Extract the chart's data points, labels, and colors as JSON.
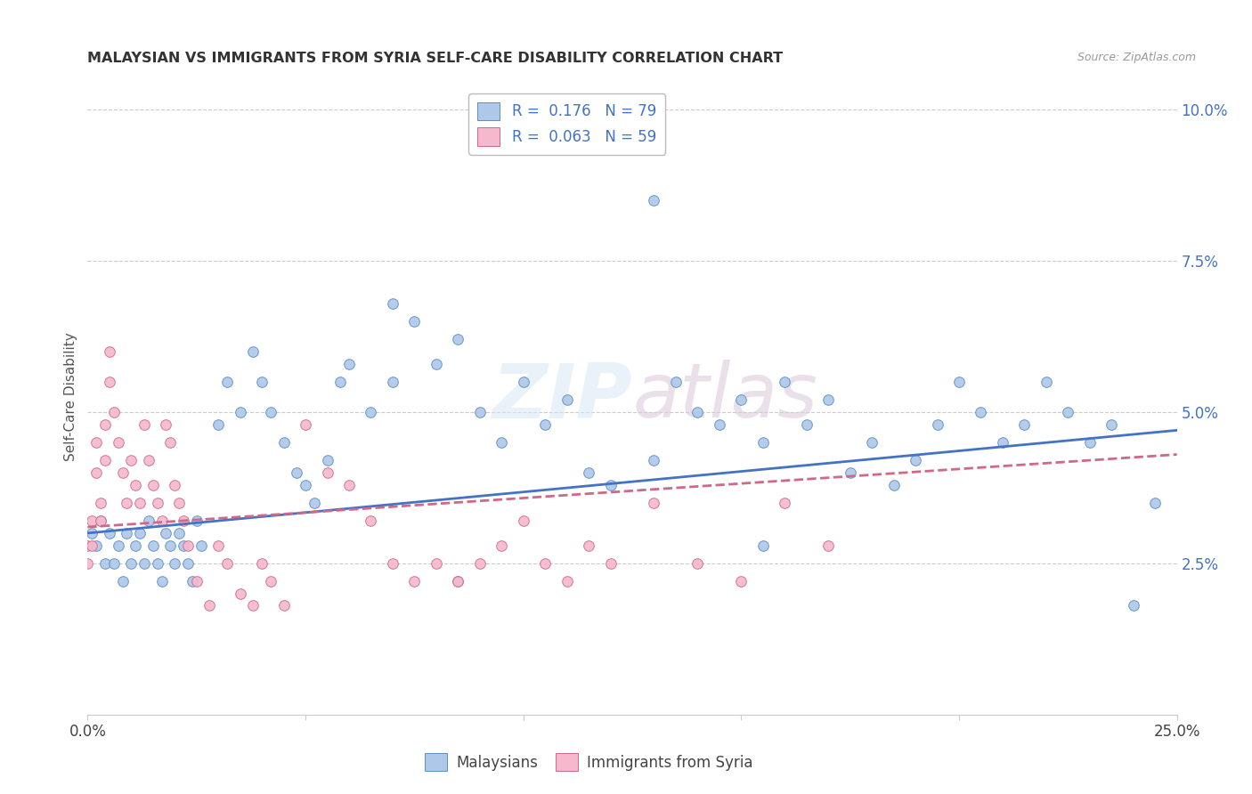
{
  "title": "MALAYSIAN VS IMMIGRANTS FROM SYRIA SELF-CARE DISABILITY CORRELATION CHART",
  "source": "Source: ZipAtlas.com",
  "ylabel": "Self-Care Disability",
  "xlim": [
    0.0,
    0.25
  ],
  "ylim": [
    0.0,
    0.105
  ],
  "legend_bottom": [
    "Malaysians",
    "Immigrants from Syria"
  ],
  "malaysian_color": "#adc8e8",
  "malaysian_edge": "#5b8ec4",
  "syrian_color": "#f5b8cc",
  "syrian_edge": "#d06888",
  "trend_malaysian_color": "#4472c4",
  "trend_syrian_color": "#d06888",
  "watermark": "ZIPatlas",
  "background_color": "#ffffff",
  "malaysian_R": 0.176,
  "malaysian_N": 79,
  "syrian_R": 0.063,
  "syrian_N": 59,
  "mal_x": [
    0.001,
    0.002,
    0.003,
    0.004,
    0.005,
    0.006,
    0.007,
    0.008,
    0.009,
    0.01,
    0.011,
    0.012,
    0.013,
    0.014,
    0.015,
    0.016,
    0.017,
    0.018,
    0.019,
    0.02,
    0.021,
    0.022,
    0.023,
    0.024,
    0.025,
    0.026,
    0.03,
    0.032,
    0.035,
    0.038,
    0.04,
    0.042,
    0.045,
    0.048,
    0.05,
    0.052,
    0.055,
    0.058,
    0.06,
    0.065,
    0.07,
    0.075,
    0.08,
    0.085,
    0.09,
    0.095,
    0.1,
    0.105,
    0.11,
    0.115,
    0.12,
    0.13,
    0.135,
    0.14,
    0.145,
    0.15,
    0.155,
    0.16,
    0.165,
    0.17,
    0.175,
    0.18,
    0.185,
    0.19,
    0.195,
    0.2,
    0.205,
    0.21,
    0.215,
    0.22,
    0.225,
    0.23,
    0.235,
    0.24,
    0.245,
    0.155,
    0.13,
    0.07,
    0.085
  ],
  "mal_y": [
    0.03,
    0.028,
    0.032,
    0.025,
    0.03,
    0.025,
    0.028,
    0.022,
    0.03,
    0.025,
    0.028,
    0.03,
    0.025,
    0.032,
    0.028,
    0.025,
    0.022,
    0.03,
    0.028,
    0.025,
    0.03,
    0.028,
    0.025,
    0.022,
    0.032,
    0.028,
    0.048,
    0.055,
    0.05,
    0.06,
    0.055,
    0.05,
    0.045,
    0.04,
    0.038,
    0.035,
    0.042,
    0.055,
    0.058,
    0.05,
    0.055,
    0.065,
    0.058,
    0.062,
    0.05,
    0.045,
    0.055,
    0.048,
    0.052,
    0.04,
    0.038,
    0.042,
    0.055,
    0.05,
    0.048,
    0.052,
    0.045,
    0.055,
    0.048,
    0.052,
    0.04,
    0.045,
    0.038,
    0.042,
    0.048,
    0.055,
    0.05,
    0.045,
    0.048,
    0.055,
    0.05,
    0.045,
    0.048,
    0.018,
    0.035,
    0.028,
    0.085,
    0.068,
    0.022
  ],
  "syr_x": [
    0.0,
    0.0,
    0.001,
    0.001,
    0.002,
    0.002,
    0.003,
    0.003,
    0.004,
    0.004,
    0.005,
    0.005,
    0.006,
    0.007,
    0.008,
    0.009,
    0.01,
    0.011,
    0.012,
    0.013,
    0.014,
    0.015,
    0.016,
    0.017,
    0.018,
    0.019,
    0.02,
    0.021,
    0.022,
    0.023,
    0.025,
    0.028,
    0.03,
    0.032,
    0.035,
    0.038,
    0.04,
    0.042,
    0.045,
    0.05,
    0.055,
    0.06,
    0.065,
    0.07,
    0.075,
    0.08,
    0.085,
    0.09,
    0.095,
    0.1,
    0.105,
    0.11,
    0.115,
    0.12,
    0.13,
    0.14,
    0.15,
    0.16,
    0.17
  ],
  "syr_y": [
    0.028,
    0.025,
    0.032,
    0.028,
    0.045,
    0.04,
    0.035,
    0.032,
    0.048,
    0.042,
    0.06,
    0.055,
    0.05,
    0.045,
    0.04,
    0.035,
    0.042,
    0.038,
    0.035,
    0.048,
    0.042,
    0.038,
    0.035,
    0.032,
    0.048,
    0.045,
    0.038,
    0.035,
    0.032,
    0.028,
    0.022,
    0.018,
    0.028,
    0.025,
    0.02,
    0.018,
    0.025,
    0.022,
    0.018,
    0.048,
    0.04,
    0.038,
    0.032,
    0.025,
    0.022,
    0.025,
    0.022,
    0.025,
    0.028,
    0.032,
    0.025,
    0.022,
    0.028,
    0.025,
    0.035,
    0.025,
    0.022,
    0.035,
    0.028
  ]
}
